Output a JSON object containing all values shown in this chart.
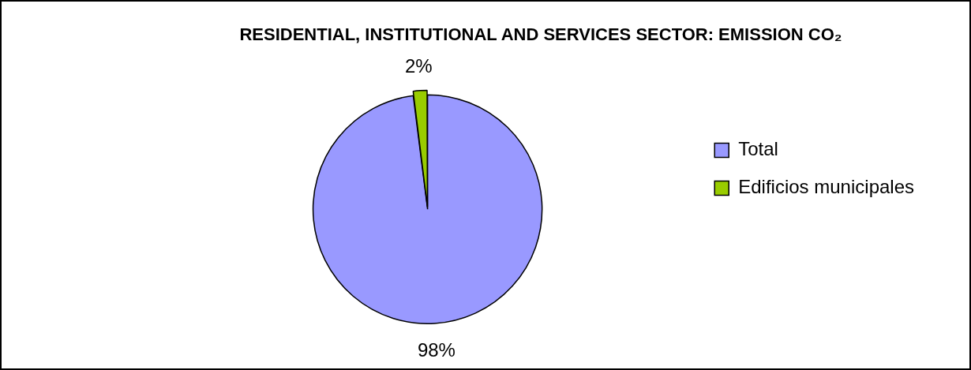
{
  "chart_data": {
    "type": "pie",
    "title": "RESIDENTIAL, INSTITUTIONAL AND SERVICES SECTOR: EMISSION CO₂",
    "categories": [
      "Total",
      "Edificios municipales"
    ],
    "values": [
      98,
      2
    ],
    "colors": [
      "#9999ff",
      "#99cc00"
    ],
    "value_labels": [
      "98%",
      "2%"
    ],
    "legend": "right"
  }
}
